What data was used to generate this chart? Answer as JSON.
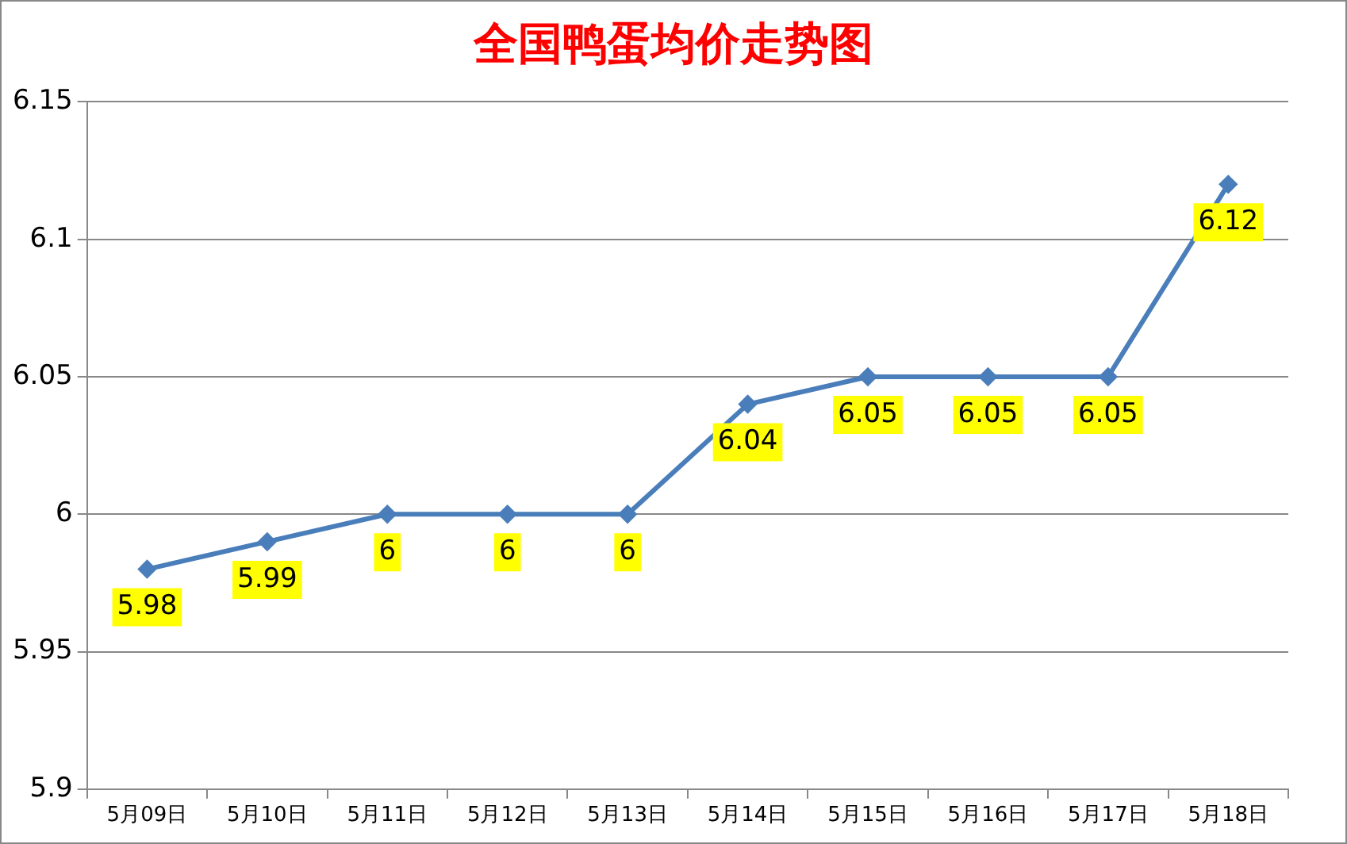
{
  "chart_data": {
    "type": "line",
    "title": "全国鸭蛋均价走势图",
    "categories": [
      "5月09日",
      "5月10日",
      "5月11日",
      "5月12日",
      "5月13日",
      "5月14日",
      "5月15日",
      "5月16日",
      "5月17日",
      "5月18日"
    ],
    "series": [
      {
        "color": "#4a7ebb",
        "values": [
          5.98,
          5.99,
          6,
          6,
          6,
          6.04,
          6.05,
          6.05,
          6.05,
          6.12
        ]
      }
    ],
    "ylim": [
      5.9,
      6.15
    ],
    "yticks": [
      5.9,
      5.95,
      6,
      6.05,
      6.1,
      6.15
    ],
    "grid": "y",
    "legend": false,
    "marker": "diamond",
    "line_style": "solid",
    "data_labels": true
  }
}
